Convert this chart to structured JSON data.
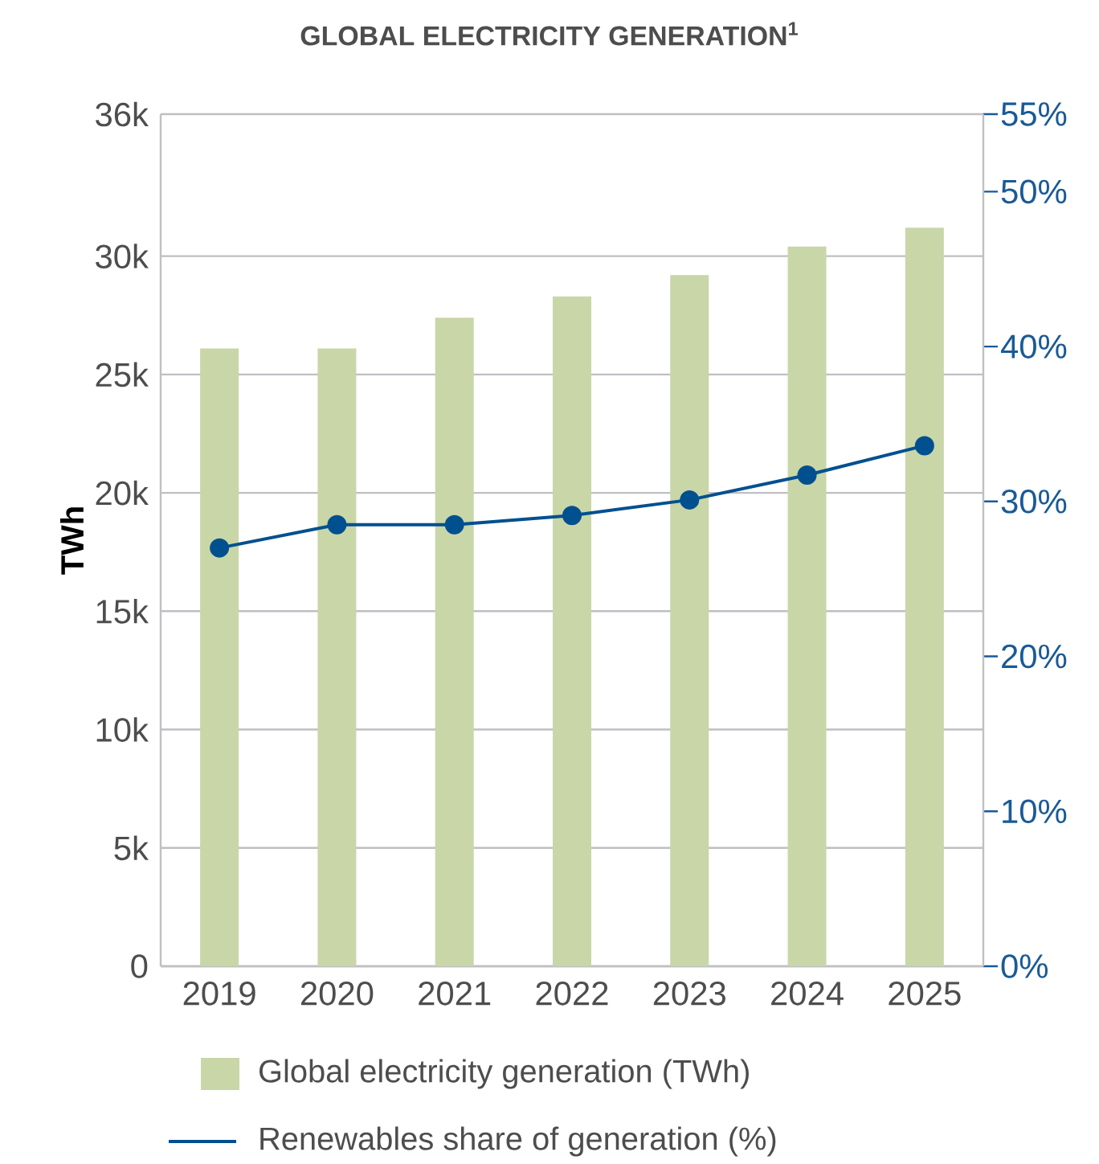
{
  "chart_data": {
    "type": "bar",
    "title": "GLOBAL ELECTRICITY GENERATION$^{1}$",
    "ylabel": "TWh",
    "categories": [
      "2019",
      "2020",
      "2021",
      "2022",
      "2023",
      "2024",
      "2025"
    ],
    "series": [
      {
        "name": "Global electricity generation (TWh)",
        "color": "#c9d6a8",
        "values": [
          26100,
          26100,
          27400,
          28300,
          29200,
          30400,
          31200
        ]
      },
      {
        "name": "Renewables share of generation (%)",
        "type": "line",
        "axis": "y2",
        "color": "#00508f",
        "values": [
          27.0,
          28.5,
          28.5,
          29.1,
          30.1,
          31.7,
          33.6
        ]
      }
    ],
    "ylim": [
      0,
      36000
    ],
    "yticks": [
      0,
      {
        "value": 5000,
        "label": "5k"
      },
      {
        "value": 10000,
        "label": "10k"
      },
      {
        "value": 15000,
        "label": "15k"
      },
      {
        "value": 20000,
        "label": "20k"
      },
      {
        "value": 25000,
        "label": "25k"
      },
      {
        "value": 30000,
        "label": "30k"
      },
      {
        "value": 36000,
        "label": "36k"
      }
    ],
    "y2lim": [
      0,
      55
    ],
    "y2ticks": [
      {
        "value": 0,
        "label": "0%"
      },
      {
        "value": 10,
        "label": "10%"
      },
      {
        "value": 20,
        "label": "20%"
      },
      {
        "value": 30,
        "label": "30%"
      },
      {
        "value": 40,
        "label": "40%"
      },
      {
        "value": 50,
        "label": "50%"
      },
      {
        "value": 55,
        "label": "55%"
      }
    ],
    "grid": "y",
    "legend": "bottom",
    "marker": "circle"
  }
}
